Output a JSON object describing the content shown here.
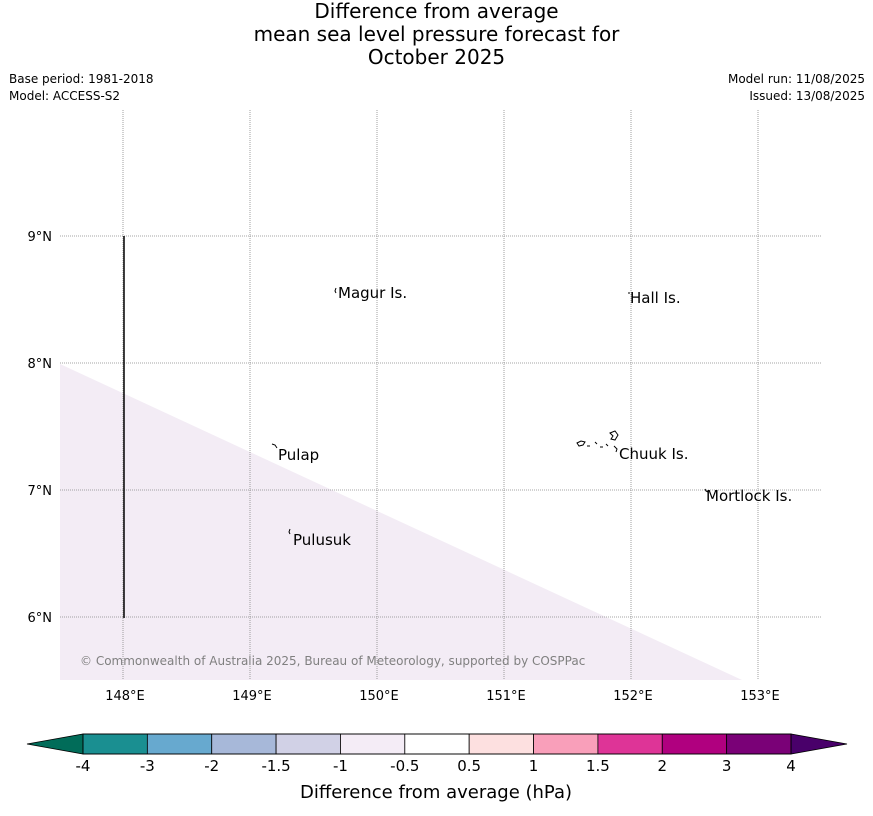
{
  "title": {
    "line1": "Difference from average",
    "line2": "mean sea level pressure forecast for",
    "line3": "October 2025"
  },
  "meta": {
    "base_period": "Base period: 1981-2018",
    "model": "Model: ACCESS-S2",
    "model_run": "Model run: 11/08/2025",
    "issued": "Issued: 13/08/2025"
  },
  "map": {
    "lon_labels": [
      "148°E",
      "149°E",
      "150°E",
      "151°E",
      "152°E",
      "153°E"
    ],
    "lat_labels": [
      "9°N",
      "8°N",
      "7°N",
      "6°N"
    ],
    "places": [
      "Magur Is.",
      "Hall Is.",
      "Pulap",
      "Chuuk Is.",
      "Mortlock Is.",
      "Pulusuk"
    ],
    "shaded_region_color": "#f3ecf5",
    "copyright": "© Commonwealth of Australia 2025, Bureau of Meteorology, supported by COSPPac"
  },
  "colorbar": {
    "ticks": [
      "-4",
      "-3",
      "-2",
      "-1.5",
      "-1",
      "-0.5",
      "0.5",
      "1",
      "1.5",
      "2",
      "3",
      "4"
    ],
    "colors": [
      "#1a8f91",
      "#67a9cf",
      "#a7b8d9",
      "#d1d1e6",
      "#f4ecf6",
      "#ffffff",
      "#fde0e0",
      "#f99fba",
      "#de3497",
      "#b0007f",
      "#7a0177"
    ],
    "under_color": "#016c59",
    "over_color": "#49006a",
    "label": "Difference from average (hPa)"
  }
}
